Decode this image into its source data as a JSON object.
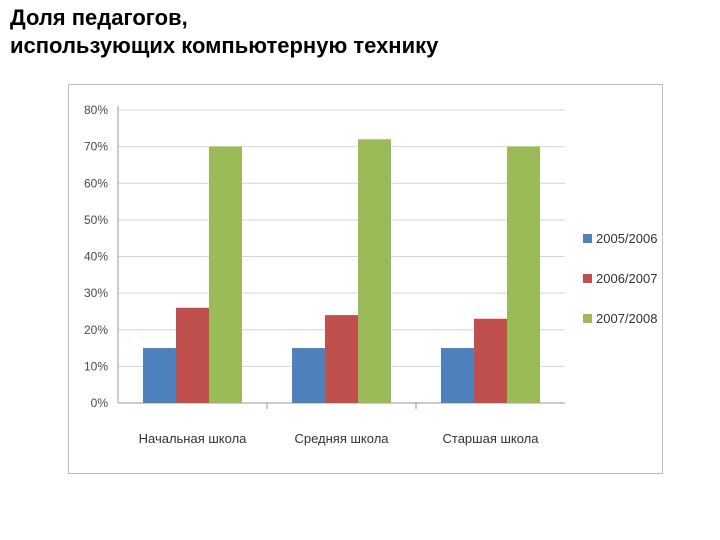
{
  "title": {
    "line1": "Доля педагогов,",
    "line2": "использующих компьютерную технику"
  },
  "chart_data": {
    "type": "bar",
    "categories": [
      "Начальная школа",
      "Средняя  школа",
      "Старшая школа"
    ],
    "series": [
      {
        "name": "2005/2006",
        "color": "#4f81bd",
        "values": [
          15,
          15,
          15
        ]
      },
      {
        "name": "2006/2007",
        "color": "#c0504d",
        "values": [
          26,
          24,
          23
        ]
      },
      {
        "name": "2007/2008",
        "color": "#9bbb59",
        "values": [
          70,
          72,
          70
        ]
      }
    ],
    "yticks": [
      "0%",
      "10%",
      "20%",
      "30%",
      "40%",
      "50%",
      "60%",
      "70%",
      "80%"
    ],
    "ylim": [
      0,
      80
    ],
    "grid": true,
    "legend_position": "right"
  }
}
